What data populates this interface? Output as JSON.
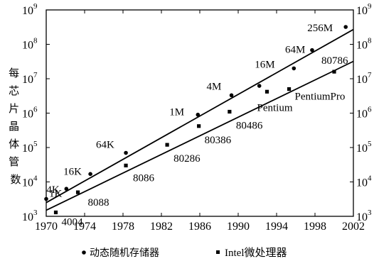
{
  "chart_data": {
    "type": "scatter",
    "title": "",
    "xlabel": "",
    "ylabel": "每芯片晶体管数",
    "x_scale": "linear",
    "y_scale": "log",
    "xlim": [
      1970,
      2002
    ],
    "ylim": [
      1000,
      1000000000
    ],
    "x_ticks": [
      "1970",
      "1974",
      "1978",
      "1982",
      "1986",
      "1990",
      "1994",
      "1998",
      "2002"
    ],
    "y_ticks_exponents": [
      "3",
      "4",
      "5",
      "6",
      "7",
      "8",
      "9"
    ],
    "y_tick_base": "10",
    "grid": false,
    "legend_position": "bottom",
    "series": [
      {
        "name": "动态随机存储器",
        "marker": "circle",
        "points": [
          {
            "x": 1970,
            "y": 3200,
            "label": "1K"
          },
          {
            "x": 1972.1,
            "y": 6300,
            "label": "4K"
          },
          {
            "x": 1974.6,
            "y": 17000,
            "label": "16K"
          },
          {
            "x": 1978.3,
            "y": 70000,
            "label": "64K"
          },
          {
            "x": 1985.8,
            "y": 900000,
            "label": "1M"
          },
          {
            "x": 1989.3,
            "y": 3300000,
            "label": "4M"
          },
          {
            "x": 1992.2,
            "y": 6200000,
            "label": ""
          },
          {
            "x": 1995.8,
            "y": 20000000,
            "label": "16M"
          },
          {
            "x": 1997.7,
            "y": 68000000,
            "label": "64M"
          },
          {
            "x": 2001.2,
            "y": 320000000,
            "label": "256M"
          }
        ],
        "trend": {
          "x": [
            1970,
            2002
          ],
          "y": [
            2500,
            270000000
          ]
        }
      },
      {
        "name": "Intel微处理器",
        "marker": "square",
        "points": [
          {
            "x": 1971,
            "y": 1300,
            "label": "4004"
          },
          {
            "x": 1973.3,
            "y": 5000,
            "label": "8088"
          },
          {
            "x": 1978.3,
            "y": 30000,
            "label": "8086"
          },
          {
            "x": 1982.6,
            "y": 120000,
            "label": "80286"
          },
          {
            "x": 1985.9,
            "y": 420000,
            "label": "80386"
          },
          {
            "x": 1989.1,
            "y": 1100000,
            "label": "80486"
          },
          {
            "x": 1993,
            "y": 4200000,
            "label": "Pentium"
          },
          {
            "x": 1995.3,
            "y": 5000000,
            "label": "PentiumPro"
          },
          {
            "x": 2000,
            "y": 16000000,
            "label": "80786"
          }
        ],
        "trend": {
          "x": [
            1970,
            2002
          ],
          "y": [
            1500,
            32000000
          ]
        }
      }
    ]
  }
}
